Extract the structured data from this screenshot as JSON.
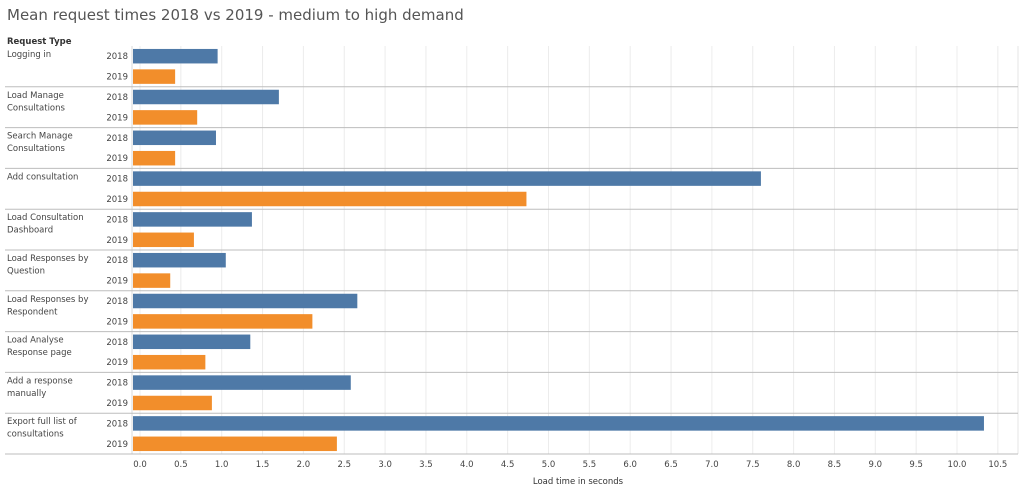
{
  "chart_data": {
    "type": "bar",
    "orientation": "horizontal",
    "title": "Mean request times 2018 vs 2019 - medium to high demand",
    "row_header": "Request Type",
    "xlabel": "Load time in seconds",
    "xlim": [
      0,
      11.2
    ],
    "ticks": [
      "0.0",
      "0.5",
      "1.0",
      "1.5",
      "2.0",
      "2.5",
      "3.0",
      "3.5",
      "4.0",
      "4.5",
      "5.0",
      "5.5",
      "6.0",
      "6.5",
      "7.0",
      "7.5",
      "8.0",
      "8.5",
      "9.0",
      "9.5",
      "10.0",
      "10.5"
    ],
    "grid": true,
    "categories": [
      {
        "label": [
          "Logging in"
        ],
        "values": [
          0.95,
          0.43
        ]
      },
      {
        "label": [
          "Load Manage",
          "Consultations"
        ],
        "values": [
          1.7,
          0.7
        ]
      },
      {
        "label": [
          "Search Manage",
          "Consultations"
        ],
        "values": [
          0.93,
          0.43
        ]
      },
      {
        "label": [
          "Add consultation"
        ],
        "values": [
          7.6,
          4.73
        ]
      },
      {
        "label": [
          "Load Consultation",
          "Dashboard"
        ],
        "values": [
          1.37,
          0.66
        ]
      },
      {
        "label": [
          "Load Responses by",
          "Question"
        ],
        "values": [
          1.05,
          0.37
        ]
      },
      {
        "label": [
          "Load Responses by",
          "Respondent"
        ],
        "values": [
          2.66,
          2.11
        ]
      },
      {
        "label": [
          "Load Analyse",
          "Response page"
        ],
        "values": [
          1.35,
          0.8
        ]
      },
      {
        "label": [
          "Add a response",
          "manually"
        ],
        "values": [
          2.58,
          0.88
        ]
      },
      {
        "label": [
          "Export full list of",
          "consultations"
        ],
        "values": [
          10.33,
          2.41
        ]
      }
    ],
    "series": [
      {
        "name": "2018",
        "color": "#4e79a7"
      },
      {
        "name": "2019",
        "color": "#f28e2b"
      }
    ]
  }
}
